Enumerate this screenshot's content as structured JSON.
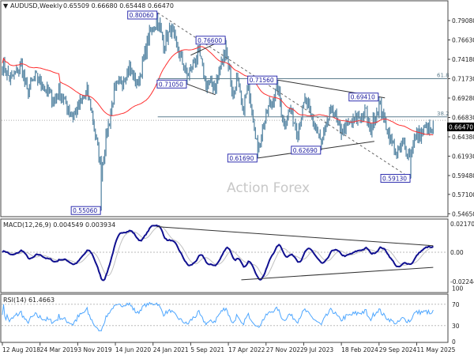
{
  "header": {
    "symbol_caret": "▼",
    "title": "AUDUSD,Weekly",
    "ohlc": "0.65509 0.66680 0.65448 0.66470"
  },
  "watermark": "Action Forex",
  "colors": {
    "bars": "#5b89a6",
    "ma": "#ff3030",
    "macd": "#101090",
    "signal": "#c0c0c0",
    "rsi": "#4da6ff",
    "label_border": "#3030b0",
    "trendline": "#333333"
  },
  "current_price": "0.66470",
  "chart_data": [
    {
      "type": "bar",
      "subtype": "ohlc",
      "x_ticks": [
        "12 Aug 2018",
        "24 Mar 2019",
        "3 Nov 2019",
        "14 Jun 2020",
        "24 Jan 2021",
        "5 Sep 2021",
        "17 Apr 2022",
        "27 Nov 2022",
        "9 Jul 2023",
        "18 Feb 2024",
        "29 Sep 2024",
        "11 May 2025"
      ],
      "y_ticks": [
        "0.79080",
        "0.76630",
        "0.74180",
        "0.71730",
        "0.69280",
        "0.66830",
        "0.64380",
        "0.61930",
        "0.59480",
        "0.57100",
        "0.54650"
      ],
      "ylim": [
        0.5465,
        0.7908
      ],
      "close_path": [
        [
          "2018-08-12",
          0.735
        ],
        [
          "2018-09-30",
          0.715
        ],
        [
          "2018-12-02",
          0.735
        ],
        [
          "2019-01-06",
          0.7
        ],
        [
          "2019-02-24",
          0.72
        ],
        [
          "2019-06-16",
          0.69
        ],
        [
          "2019-07-14",
          0.7
        ],
        [
          "2019-10-06",
          0.67
        ],
        [
          "2019-12-29",
          0.7
        ],
        [
          "2020-01-26",
          0.675
        ],
        [
          "2020-03-22",
          0.6
        ],
        [
          "2020-04-19",
          0.64
        ],
        [
          "2020-06-07",
          0.7
        ],
        [
          "2020-09-06",
          0.73
        ],
        [
          "2020-10-25",
          0.71
        ],
        [
          "2021-01-03",
          0.775
        ],
        [
          "2021-02-21",
          0.79
        ],
        [
          "2021-03-28",
          0.76
        ],
        [
          "2021-05-09",
          0.78
        ],
        [
          "2021-08-15",
          0.72
        ],
        [
          "2021-10-24",
          0.75
        ],
        [
          "2021-12-05",
          0.71
        ],
        [
          "2022-01-30",
          0.71
        ],
        [
          "2022-04-03",
          0.755
        ],
        [
          "2022-05-15",
          0.695
        ],
        [
          "2022-06-05",
          0.72
        ],
        [
          "2022-07-10",
          0.675
        ],
        [
          "2022-08-14",
          0.71
        ],
        [
          "2022-10-09",
          0.63
        ],
        [
          "2022-12-11",
          0.68
        ],
        [
          "2023-02-05",
          0.705
        ],
        [
          "2023-03-12",
          0.66
        ],
        [
          "2023-04-16",
          0.68
        ],
        [
          "2023-06-04",
          0.65
        ],
        [
          "2023-07-16",
          0.69
        ],
        [
          "2023-10-22",
          0.635
        ],
        [
          "2023-12-24",
          0.68
        ],
        [
          "2024-02-11",
          0.65
        ],
        [
          "2024-05-12",
          0.665
        ],
        [
          "2024-07-14",
          0.675
        ],
        [
          "2024-08-04",
          0.65
        ],
        [
          "2024-09-29",
          0.685
        ],
        [
          "2024-11-24",
          0.65
        ],
        [
          "2025-01-12",
          0.62
        ],
        [
          "2025-02-16",
          0.635
        ],
        [
          "2025-04-06",
          0.62
        ],
        [
          "2025-04-20",
          0.64
        ],
        [
          "2025-06-08",
          0.65
        ],
        [
          "2025-07-20",
          0.655
        ],
        [
          "2025-08-03",
          0.645
        ],
        [
          "2025-08-17",
          0.6647
        ]
      ],
      "swing_points": [
        {
          "date": "2020-03-22",
          "price": 0.5506,
          "kind": "low",
          "label": "0.55060"
        },
        {
          "date": "2021-02-21",
          "price": 0.8006,
          "kind": "high",
          "label": "0.80060"
        },
        {
          "date": "2021-08-15",
          "price": 0.7105,
          "kind": "low",
          "label": "0.71050"
        },
        {
          "date": "2022-04-03",
          "price": 0.766,
          "kind": "high",
          "label": "0.76600"
        },
        {
          "date": "2022-10-09",
          "price": 0.6169,
          "kind": "low",
          "label": "0.61690"
        },
        {
          "date": "2023-02-05",
          "price": 0.7156,
          "kind": "high",
          "label": "0.71560"
        },
        {
          "date": "2023-10-22",
          "price": 0.6269,
          "kind": "low",
          "label": "0.62690"
        },
        {
          "date": "2024-09-29",
          "price": 0.6941,
          "kind": "high",
          "label": "0.69410"
        },
        {
          "date": "2025-04-06",
          "price": 0.5913,
          "kind": "low",
          "label": "0.59130"
        }
      ],
      "moving_average_period": 50,
      "fib_levels": [
        {
          "label": "61.8",
          "price": 0.7173,
          "from": "2021-02-21"
        },
        {
          "label": "38.2",
          "price": 0.669,
          "from": "2021-02-21"
        }
      ],
      "trendlines": [
        {
          "style": "dashed",
          "from": [
            "2021-02-21",
            0.8006
          ],
          "to": [
            "2025-04-06",
            0.5913
          ]
        },
        {
          "style": "solid",
          "from": [
            "2023-02-05",
            0.7156
          ],
          "to": [
            "2024-11-03",
            0.693
          ]
        },
        {
          "style": "solid",
          "from": [
            "2022-10-09",
            0.6169
          ],
          "to": [
            "2024-09-01",
            0.638
          ]
        },
        {
          "style": "solid",
          "from": [
            "2021-09-05",
            0.747
          ],
          "to": [
            "2022-04-03",
            0.768
          ]
        },
        {
          "style": "solid",
          "from": [
            "2021-08-15",
            0.7105
          ],
          "to": [
            "2022-01-30",
            0.697
          ]
        }
      ]
    },
    {
      "type": "line",
      "title": "MACD(12,26,9) 0.004549 0.003934",
      "y_ticks": [
        "0.021701",
        "0.00",
        "-0.022445"
      ],
      "ylim": [
        -0.022445,
        0.021701
      ],
      "trendlines": [
        {
          "from": [
            "2021-02-14",
            0.0195
          ],
          "to": [
            "2025-08-17",
            0.005
          ]
        },
        {
          "from": [
            "2022-07-03",
            -0.021
          ],
          "to": [
            "2025-08-17",
            -0.0115
          ]
        }
      ]
    },
    {
      "type": "line",
      "title": "RSI(14) 61.4663",
      "y_ticks": [
        "100",
        "70",
        "30",
        "0"
      ],
      "ylim": [
        0,
        100
      ],
      "levels": [
        70,
        30
      ]
    }
  ]
}
